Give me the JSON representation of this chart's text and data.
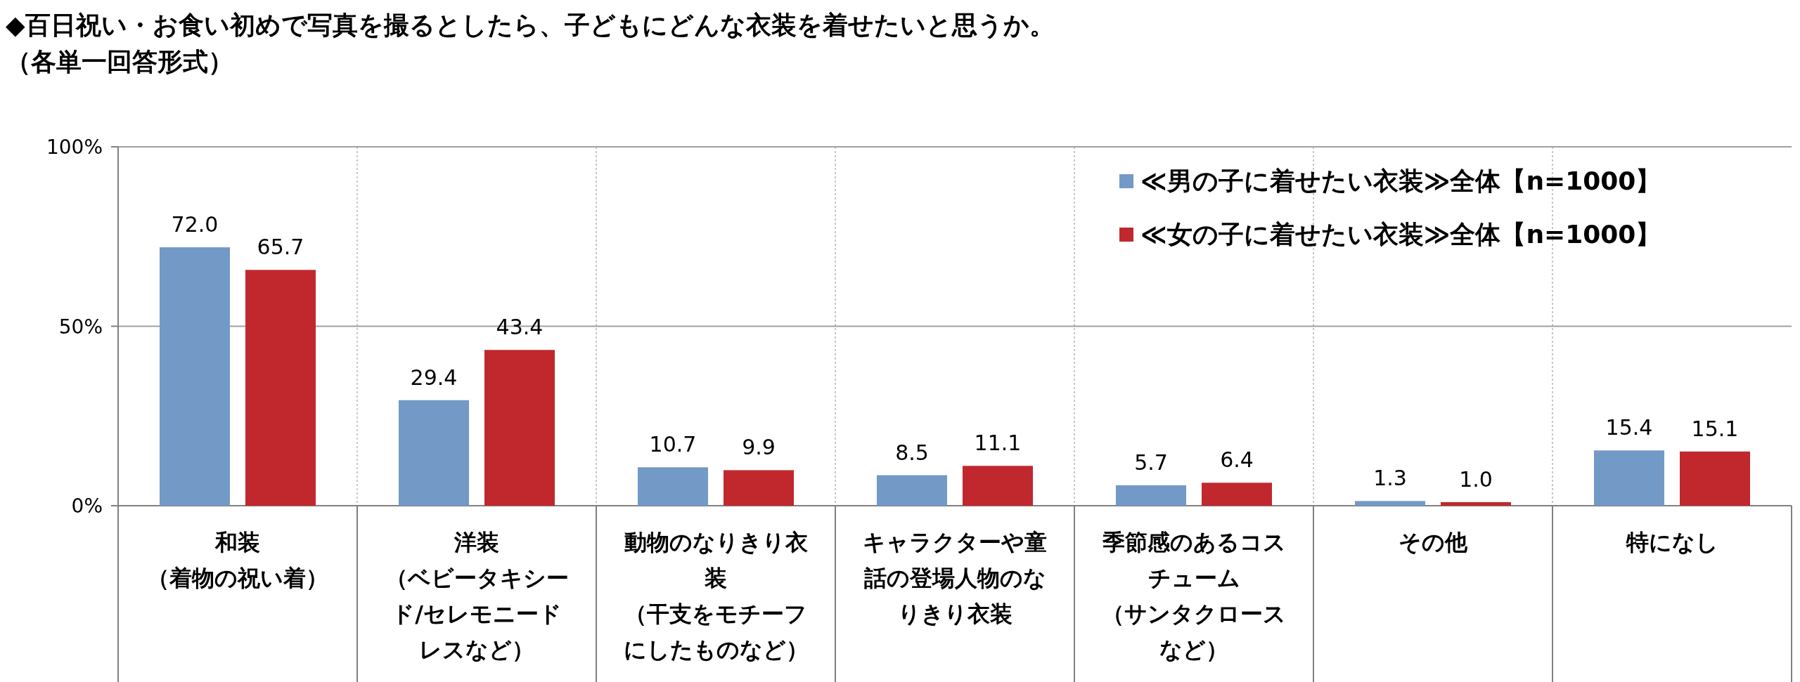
{
  "chart_data": {
    "type": "bar",
    "title": "◆百日祝い・お食い初めで写真を撮るとしたら、子どもにどんな衣装を着せたいと思うか。",
    "subtitle": "（各単一回答形式）",
    "categories": [
      "和装（着物の祝い着）",
      "洋装（ベビータキシード/セレモニードレスなど）",
      "動物のなりきり衣装（干支をモチーフにしたものなど）",
      "キャラクターや童話の登場人物のなりきり衣装",
      "季節感のあるコスチューム（サンタクロースなど）",
      "その他",
      "特になし"
    ],
    "series": [
      {
        "name": "≪男の子に着せたい衣装≫全体【n=1000】",
        "color": "#7399c6",
        "values": [
          72.0,
          29.4,
          10.7,
          8.5,
          5.7,
          1.3,
          15.4
        ],
        "value_labels": [
          "72.0",
          "29.4",
          "10.7",
          "8.5",
          "5.7",
          "1.3",
          "15.4"
        ]
      },
      {
        "name": "≪女の子に着せたい衣装≫全体【n=1000】",
        "color": "#c0282d",
        "values": [
          65.7,
          43.4,
          9.9,
          11.1,
          6.4,
          1.0,
          15.1
        ],
        "value_labels": [
          "65.7",
          "43.4",
          "9.9",
          "11.1",
          "6.4",
          "1.0",
          "15.1"
        ]
      }
    ],
    "ylim": [
      0,
      100
    ],
    "yticks": [
      {
        "value": 0,
        "label": "0%"
      },
      {
        "value": 50,
        "label": "50%"
      },
      {
        "value": 100,
        "label": "100%"
      }
    ],
    "ref_lines": [
      {
        "axis": "y",
        "value": 50,
        "color": "#a0a0a0"
      }
    ],
    "legend": "top right"
  }
}
